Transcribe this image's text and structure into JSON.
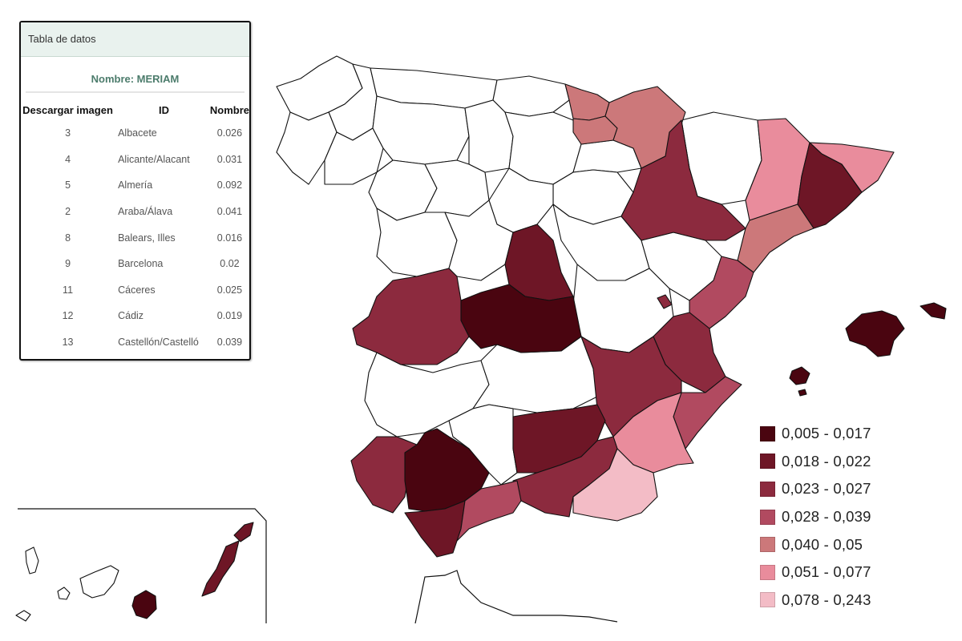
{
  "table": {
    "header_title": "Tabla de datos",
    "subtitle": "Nombre: MERIAM",
    "columns": [
      "Descargar imagen",
      "ID",
      "Nombre"
    ],
    "rows": [
      {
        "id": "3",
        "name": "Albacete",
        "value": "0.026"
      },
      {
        "id": "4",
        "name": "Alicante/Alacant",
        "value": "0.031"
      },
      {
        "id": "5",
        "name": "Almería",
        "value": "0.092"
      },
      {
        "id": "2",
        "name": "Araba/Álava",
        "value": "0.041"
      },
      {
        "id": "8",
        "name": "Balears, Illes",
        "value": "0.016"
      },
      {
        "id": "9",
        "name": "Barcelona",
        "value": "0.02"
      },
      {
        "id": "11",
        "name": "Cáceres",
        "value": "0.025"
      },
      {
        "id": "12",
        "name": "Cádiz",
        "value": "0.019"
      },
      {
        "id": "13",
        "name": "Castellón/Castelló",
        "value": "0.039"
      }
    ]
  },
  "legend": {
    "items": [
      {
        "label": "0,005 - 0,017",
        "color": "#4a0510"
      },
      {
        "label": "0,018 - 0,022",
        "color": "#6e1626"
      },
      {
        "label": "0,023 - 0,027",
        "color": "#8c2a3e"
      },
      {
        "label": "0,028 - 0,039",
        "color": "#b14a60"
      },
      {
        "label": "0,040 - 0,05",
        "color": "#cc787a"
      },
      {
        "label": "0,051 - 0,077",
        "color": "#e98c9c"
      },
      {
        "label": "0,078 - 0,243",
        "color": "#f3bcc6"
      }
    ],
    "no_data_color": "#ffffff"
  }
}
